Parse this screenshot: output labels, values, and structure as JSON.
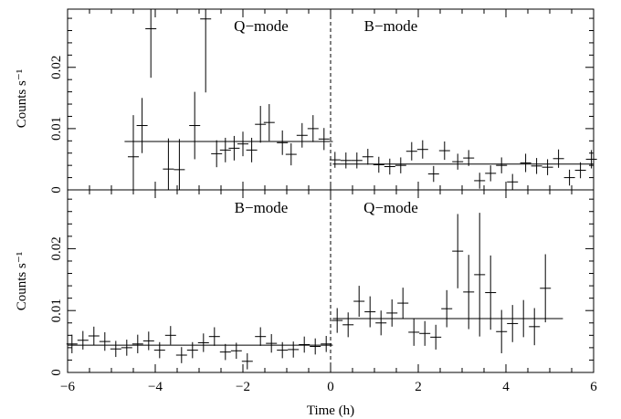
{
  "chart_data": {
    "type": "scatter",
    "x_range": [
      -6,
      6
    ],
    "xlabel": "Time (h)",
    "x_ticks": [
      -6,
      -4,
      -2,
      0,
      2,
      4,
      6
    ],
    "x_tick_labels": [
      "−6",
      "−4",
      "−2",
      "0",
      "2",
      "4",
      "6"
    ],
    "divider_x": 0,
    "panels": [
      {
        "ylabel": "Counts s⁻¹",
        "ylim": [
          0,
          0.0295
        ],
        "y_ticks": [
          0,
          0.01,
          0.02
        ],
        "y_tick_labels": [
          "0",
          "0.01",
          "0.02"
        ],
        "mode_labels": [
          {
            "text": "Q−mode",
            "x": -2.4
          },
          {
            "text": "B−mode",
            "x": 1.35
          }
        ],
        "fit_lines": [
          {
            "x": [
              -4.7,
              0.05
            ],
            "y": 0.0079
          },
          {
            "x": [
              0.05,
              6
            ],
            "y": 0.0042
          }
        ],
        "points": [
          {
            "x": -4.5,
            "y": 0.0054,
            "err": 0.0068
          },
          {
            "x": -4.3,
            "y": 0.0105,
            "err": 0.0045
          },
          {
            "x": -4.1,
            "y": 0.0263,
            "err": 0.008
          },
          {
            "x": -3.7,
            "y": 0.0034,
            "err": 0.005
          },
          {
            "x": -3.45,
            "y": 0.0033,
            "err": 0.005
          },
          {
            "x": -3.1,
            "y": 0.0105,
            "err": 0.0055
          },
          {
            "x": -2.85,
            "y": 0.0279,
            "err": 0.012
          },
          {
            "x": -2.6,
            "y": 0.0059,
            "err": 0.0022
          },
          {
            "x": -2.4,
            "y": 0.0065,
            "err": 0.002
          },
          {
            "x": -2.2,
            "y": 0.0068,
            "err": 0.002
          },
          {
            "x": -2.0,
            "y": 0.0075,
            "err": 0.002
          },
          {
            "x": -1.8,
            "y": 0.0065,
            "err": 0.002
          },
          {
            "x": -1.6,
            "y": 0.0107,
            "err": 0.003
          },
          {
            "x": -1.4,
            "y": 0.011,
            "err": 0.003
          },
          {
            "x": -1.1,
            "y": 0.0077,
            "err": 0.002
          },
          {
            "x": -0.9,
            "y": 0.0058,
            "err": 0.0018
          },
          {
            "x": -0.65,
            "y": 0.0089,
            "err": 0.002
          },
          {
            "x": -0.4,
            "y": 0.01,
            "err": 0.0022
          },
          {
            "x": -0.15,
            "y": 0.0083,
            "err": 0.0018
          },
          {
            "x": 0.1,
            "y": 0.0049,
            "err": 0.0013
          },
          {
            "x": 0.35,
            "y": 0.0048,
            "err": 0.0013
          },
          {
            "x": 0.6,
            "y": 0.0048,
            "err": 0.0013
          },
          {
            "x": 0.85,
            "y": 0.0054,
            "err": 0.0013
          },
          {
            "x": 1.1,
            "y": 0.0041,
            "err": 0.0013
          },
          {
            "x": 1.35,
            "y": 0.0038,
            "err": 0.0013
          },
          {
            "x": 1.6,
            "y": 0.004,
            "err": 0.0013
          },
          {
            "x": 1.85,
            "y": 0.0063,
            "err": 0.0015
          },
          {
            "x": 2.1,
            "y": 0.0066,
            "err": 0.0015
          },
          {
            "x": 2.35,
            "y": 0.0026,
            "err": 0.0013
          },
          {
            "x": 2.6,
            "y": 0.0064,
            "err": 0.0015
          },
          {
            "x": 2.9,
            "y": 0.0046,
            "err": 0.0013
          },
          {
            "x": 3.15,
            "y": 0.0052,
            "err": 0.0013
          },
          {
            "x": 3.4,
            "y": 0.0015,
            "err": 0.0013
          },
          {
            "x": 3.65,
            "y": 0.0027,
            "err": 0.0013
          },
          {
            "x": 3.9,
            "y": 0.004,
            "err": 0.0013
          },
          {
            "x": 4.15,
            "y": 0.0013,
            "err": 0.0013
          },
          {
            "x": 4.45,
            "y": 0.0044,
            "err": 0.0015
          },
          {
            "x": 4.7,
            "y": 0.0039,
            "err": 0.0013
          },
          {
            "x": 4.95,
            "y": 0.0037,
            "err": 0.0013
          },
          {
            "x": 5.2,
            "y": 0.0051,
            "err": 0.0015
          },
          {
            "x": 5.45,
            "y": 0.002,
            "err": 0.0013
          },
          {
            "x": 5.7,
            "y": 0.0032,
            "err": 0.0013
          },
          {
            "x": 5.95,
            "y": 0.005,
            "err": 0.0015
          }
        ]
      },
      {
        "ylabel": "Counts s⁻¹",
        "ylim": [
          0,
          0.0295
        ],
        "y_ticks": [
          0,
          0.01,
          0.02
        ],
        "y_tick_labels": [
          "0",
          "0.01",
          "0.02"
        ],
        "mode_labels": [
          {
            "text": "B−mode",
            "x": -2.4
          },
          {
            "text": "Q−mode",
            "x": 1.35
          }
        ],
        "fit_lines": [
          {
            "x": [
              -6,
              0.05
            ],
            "y": 0.0044
          },
          {
            "x": [
              0.05,
              5.3
            ],
            "y": 0.0087
          }
        ],
        "points": [
          {
            "x": -5.9,
            "y": 0.0046,
            "err": 0.0015
          },
          {
            "x": -5.65,
            "y": 0.0052,
            "err": 0.0015
          },
          {
            "x": -5.4,
            "y": 0.0059,
            "err": 0.0015
          },
          {
            "x": -5.15,
            "y": 0.005,
            "err": 0.0015
          },
          {
            "x": -4.9,
            "y": 0.0038,
            "err": 0.0013
          },
          {
            "x": -4.65,
            "y": 0.004,
            "err": 0.0013
          },
          {
            "x": -4.4,
            "y": 0.0046,
            "err": 0.0015
          },
          {
            "x": -4.15,
            "y": 0.0051,
            "err": 0.0015
          },
          {
            "x": -3.9,
            "y": 0.0036,
            "err": 0.0013
          },
          {
            "x": -3.65,
            "y": 0.006,
            "err": 0.0015
          },
          {
            "x": -3.4,
            "y": 0.0028,
            "err": 0.0013
          },
          {
            "x": -3.15,
            "y": 0.0036,
            "err": 0.0013
          },
          {
            "x": -2.9,
            "y": 0.0048,
            "err": 0.0015
          },
          {
            "x": -2.65,
            "y": 0.0058,
            "err": 0.0015
          },
          {
            "x": -2.4,
            "y": 0.0033,
            "err": 0.0013
          },
          {
            "x": -2.15,
            "y": 0.0035,
            "err": 0.0013
          },
          {
            "x": -1.9,
            "y": 0.0018,
            "err": 0.0013
          },
          {
            "x": -1.6,
            "y": 0.0058,
            "err": 0.0015
          },
          {
            "x": -1.35,
            "y": 0.0047,
            "err": 0.0015
          },
          {
            "x": -1.1,
            "y": 0.0036,
            "err": 0.0013
          },
          {
            "x": -0.85,
            "y": 0.0037,
            "err": 0.0013
          },
          {
            "x": -0.6,
            "y": 0.0045,
            "err": 0.0013
          },
          {
            "x": -0.35,
            "y": 0.0042,
            "err": 0.0013
          },
          {
            "x": -0.1,
            "y": 0.0046,
            "err": 0.0013
          },
          {
            "x": 0.15,
            "y": 0.0084,
            "err": 0.002
          },
          {
            "x": 0.4,
            "y": 0.0077,
            "err": 0.002
          },
          {
            "x": 0.65,
            "y": 0.0115,
            "err": 0.0025
          },
          {
            "x": 0.9,
            "y": 0.0098,
            "err": 0.0025
          },
          {
            "x": 1.15,
            "y": 0.008,
            "err": 0.002
          },
          {
            "x": 1.4,
            "y": 0.0096,
            "err": 0.0022
          },
          {
            "x": 1.65,
            "y": 0.0112,
            "err": 0.0025
          },
          {
            "x": 1.9,
            "y": 0.0065,
            "err": 0.0022
          },
          {
            "x": 2.15,
            "y": 0.0063,
            "err": 0.002
          },
          {
            "x": 2.4,
            "y": 0.0057,
            "err": 0.002
          },
          {
            "x": 2.65,
            "y": 0.0103,
            "err": 0.003
          },
          {
            "x": 2.9,
            "y": 0.0196,
            "err": 0.006
          },
          {
            "x": 3.15,
            "y": 0.013,
            "err": 0.006
          },
          {
            "x": 3.4,
            "y": 0.0158,
            "err": 0.01
          },
          {
            "x": 3.65,
            "y": 0.0129,
            "err": 0.006
          },
          {
            "x": 3.9,
            "y": 0.0066,
            "err": 0.0035
          },
          {
            "x": 4.15,
            "y": 0.0079,
            "err": 0.003
          },
          {
            "x": 4.4,
            "y": 0.0087,
            "err": 0.003
          },
          {
            "x": 4.65,
            "y": 0.0074,
            "err": 0.003
          },
          {
            "x": 4.9,
            "y": 0.0136,
            "err": 0.0055
          }
        ]
      }
    ]
  }
}
